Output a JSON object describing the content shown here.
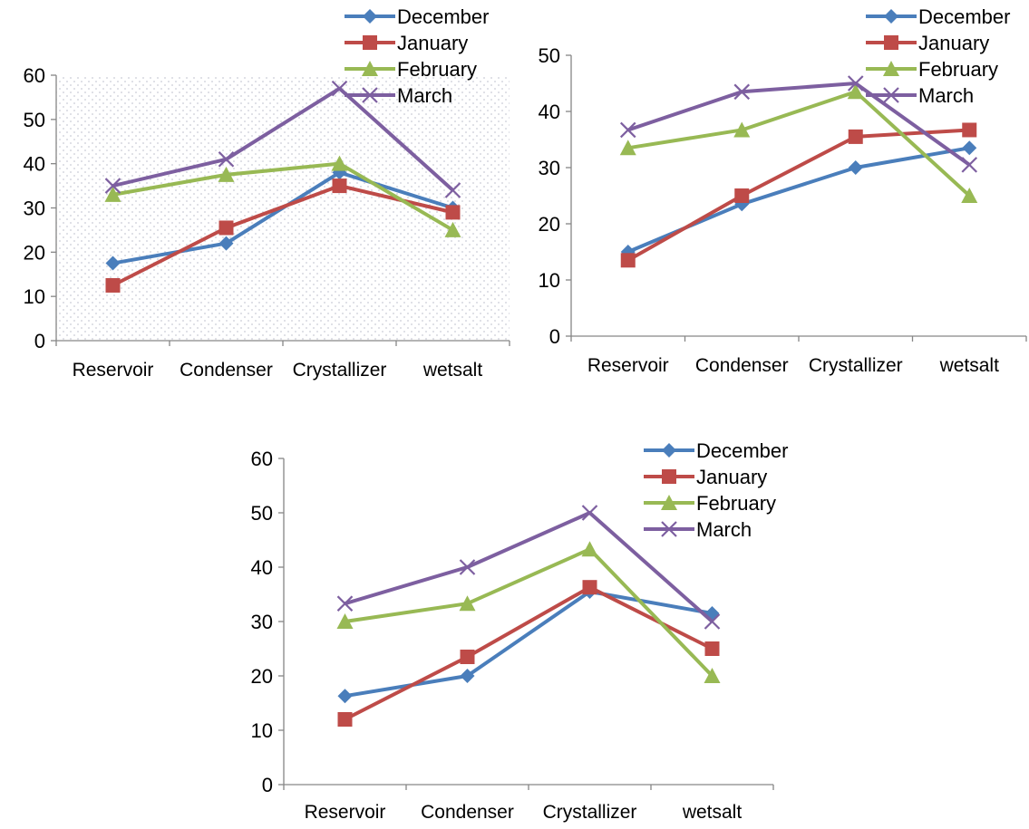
{
  "chart_data": [
    {
      "type": "line",
      "categories": [
        "Reservoir",
        "Condenser",
        "Crystallizer",
        "wetsalt"
      ],
      "ylim": [
        0,
        60
      ],
      "yticks": [
        0,
        10,
        20,
        30,
        40,
        50,
        60
      ],
      "grid": false,
      "plot_background": "dotted-pattern",
      "legend": "top-right",
      "series": [
        {
          "name": "December",
          "color": "#4a7ebb",
          "marker": "diamond",
          "values": [
            17.5,
            22,
            38,
            30
          ]
        },
        {
          "name": "January",
          "color": "#be4b48",
          "marker": "square",
          "values": [
            12.5,
            25.5,
            35,
            29
          ]
        },
        {
          "name": "February",
          "color": "#98b954",
          "marker": "triangle",
          "values": [
            33,
            37.5,
            40,
            25
          ]
        },
        {
          "name": "March",
          "color": "#7d5fa0",
          "marker": "x",
          "values": [
            35,
            41,
            57,
            34
          ]
        }
      ]
    },
    {
      "type": "line",
      "categories": [
        "Reservoir",
        "Condenser",
        "Crystallizer",
        "wetsalt"
      ],
      "ylim": [
        0,
        50
      ],
      "yticks": [
        0,
        10,
        20,
        30,
        40,
        50
      ],
      "grid": false,
      "legend": "top-right",
      "series": [
        {
          "name": "December",
          "color": "#4a7ebb",
          "marker": "diamond",
          "values": [
            15,
            23.5,
            30,
            33.5
          ]
        },
        {
          "name": "January",
          "color": "#be4b48",
          "marker": "square",
          "values": [
            13.5,
            25,
            35.5,
            36.7
          ]
        },
        {
          "name": "February",
          "color": "#98b954",
          "marker": "triangle",
          "values": [
            33.5,
            36.7,
            43.5,
            25
          ]
        },
        {
          "name": "March",
          "color": "#7d5fa0",
          "marker": "x",
          "values": [
            36.7,
            43.5,
            45,
            30.5
          ]
        }
      ]
    },
    {
      "type": "line",
      "categories": [
        "Reservoir",
        "Condenser",
        "Crystallizer",
        "wetsalt"
      ],
      "ylim": [
        0,
        60
      ],
      "yticks": [
        0,
        10,
        20,
        30,
        40,
        50,
        60
      ],
      "grid": false,
      "legend": "top-right",
      "series": [
        {
          "name": "December",
          "color": "#4a7ebb",
          "marker": "diamond",
          "values": [
            16.3,
            20,
            35.5,
            31.5
          ]
        },
        {
          "name": "January",
          "color": "#be4b48",
          "marker": "square",
          "values": [
            12,
            23.5,
            36.3,
            25
          ]
        },
        {
          "name": "February",
          "color": "#98b954",
          "marker": "triangle",
          "values": [
            30,
            33.3,
            43.3,
            20
          ]
        },
        {
          "name": "March",
          "color": "#7d5fa0",
          "marker": "x",
          "values": [
            33.3,
            40,
            50,
            30
          ]
        }
      ]
    }
  ]
}
